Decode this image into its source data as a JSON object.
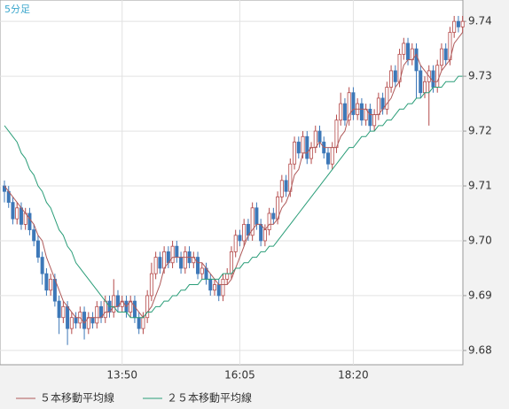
{
  "chart_data": {
    "type": "candlestick",
    "title": "5分足",
    "categories": [
      null,
      null,
      null,
      null,
      null,
      null,
      null,
      null,
      null,
      null,
      null,
      null,
      null,
      null,
      null,
      null,
      null,
      null,
      null,
      null,
      null,
      null,
      null,
      null,
      null,
      null,
      null,
      null,
      "13:50",
      null,
      null,
      null,
      null,
      null,
      null,
      null,
      null,
      null,
      null,
      null,
      null,
      null,
      null,
      null,
      null,
      null,
      null,
      null,
      null,
      null,
      null,
      null,
      null,
      null,
      null,
      null,
      "16:05",
      null,
      null,
      null,
      null,
      null,
      null,
      null,
      null,
      null,
      null,
      null,
      null,
      null,
      null,
      null,
      null,
      null,
      null,
      null,
      null,
      null,
      null,
      null,
      null,
      null,
      null,
      "18:20",
      null,
      null,
      null,
      null,
      null,
      null,
      null,
      null,
      null,
      null,
      null,
      null,
      null,
      null,
      null,
      null,
      null,
      null,
      null,
      null,
      null,
      null,
      null,
      null,
      null,
      null
    ],
    "ohlc": [
      [
        9.71,
        9.711,
        9.707,
        9.709
      ],
      [
        9.709,
        9.71,
        9.706,
        9.707
      ],
      [
        9.707,
        9.708,
        9.703,
        9.704
      ],
      [
        9.704,
        9.707,
        9.703,
        9.706
      ],
      [
        9.706,
        9.707,
        9.702,
        9.703
      ],
      [
        9.703,
        9.706,
        9.702,
        9.705
      ],
      [
        9.705,
        9.706,
        9.701,
        9.702
      ],
      [
        9.702,
        9.703,
        9.699,
        9.7
      ],
      [
        9.7,
        9.701,
        9.696,
        9.697
      ],
      [
        9.697,
        9.698,
        9.692,
        9.694
      ],
      [
        9.694,
        9.695,
        9.69,
        9.691
      ],
      [
        9.691,
        9.694,
        9.69,
        9.693
      ],
      [
        9.693,
        9.694,
        9.688,
        9.689
      ],
      [
        9.689,
        9.69,
        9.683,
        9.686
      ],
      [
        9.686,
        9.689,
        9.685,
        9.688
      ],
      [
        9.688,
        9.689,
        9.681,
        9.684
      ],
      [
        9.684,
        9.687,
        9.683,
        9.686
      ],
      [
        9.686,
        9.687,
        9.684,
        9.685
      ],
      [
        9.685,
        9.688,
        9.684,
        9.687
      ],
      [
        9.687,
        9.688,
        9.682,
        9.684
      ],
      [
        9.684,
        9.687,
        9.683,
        9.686
      ],
      [
        9.686,
        9.687,
        9.684,
        9.685
      ],
      [
        9.685,
        9.689,
        9.684,
        9.688
      ],
      [
        9.688,
        9.689,
        9.685,
        9.686
      ],
      [
        9.686,
        9.69,
        9.685,
        9.689
      ],
      [
        9.689,
        9.69,
        9.686,
        9.687
      ],
      [
        9.687,
        9.693,
        9.686,
        9.69
      ],
      [
        9.69,
        9.691,
        9.687,
        9.688
      ],
      [
        9.688,
        9.69,
        9.687,
        9.689
      ],
      [
        9.689,
        9.69,
        9.686,
        9.687
      ],
      [
        9.687,
        9.69,
        9.686,
        9.689
      ],
      [
        9.689,
        9.69,
        9.685,
        9.686
      ],
      [
        9.686,
        9.687,
        9.683,
        9.684
      ],
      [
        9.684,
        9.687,
        9.683,
        9.686
      ],
      [
        9.686,
        9.691,
        9.685,
        9.69
      ],
      [
        9.69,
        9.696,
        9.689,
        9.694
      ],
      [
        9.694,
        9.698,
        9.693,
        9.697
      ],
      [
        9.697,
        9.698,
        9.694,
        9.695
      ],
      [
        9.695,
        9.699,
        9.694,
        9.698
      ],
      [
        9.698,
        9.699,
        9.695,
        9.696
      ],
      [
        9.696,
        9.7,
        9.695,
        9.699
      ],
      [
        9.699,
        9.7,
        9.696,
        9.697
      ],
      [
        9.697,
        9.698,
        9.694,
        9.695
      ],
      [
        9.695,
        9.699,
        9.694,
        9.698
      ],
      [
        9.698,
        9.699,
        9.695,
        9.696
      ],
      [
        9.696,
        9.698,
        9.695,
        9.697
      ],
      [
        9.697,
        9.698,
        9.693,
        9.694
      ],
      [
        9.694,
        9.696,
        9.693,
        9.695
      ],
      [
        9.695,
        9.696,
        9.692,
        9.693
      ],
      [
        9.693,
        9.694,
        9.69,
        9.691
      ],
      [
        9.691,
        9.693,
        9.69,
        9.692
      ],
      [
        9.692,
        9.693,
        9.689,
        9.69
      ],
      [
        9.69,
        9.694,
        9.689,
        9.693
      ],
      [
        9.693,
        9.695,
        9.692,
        9.694
      ],
      [
        9.694,
        9.699,
        9.693,
        9.698
      ],
      [
        9.698,
        9.702,
        9.697,
        9.701
      ],
      [
        9.701,
        9.702,
        9.699,
        9.7
      ],
      [
        9.7,
        9.704,
        9.699,
        9.703
      ],
      [
        9.703,
        9.704,
        9.7,
        9.701
      ],
      [
        9.701,
        9.707,
        9.7,
        9.706
      ],
      [
        9.706,
        9.707,
        9.702,
        9.703
      ],
      [
        9.703,
        9.704,
        9.699,
        9.7
      ],
      [
        9.7,
        9.703,
        9.699,
        9.702
      ],
      [
        9.702,
        9.706,
        9.701,
        9.705
      ],
      [
        9.705,
        9.706,
        9.703,
        9.704
      ],
      [
        9.704,
        9.709,
        9.703,
        9.708
      ],
      [
        9.708,
        9.712,
        9.707,
        9.711
      ],
      [
        9.711,
        9.712,
        9.708,
        9.709
      ],
      [
        9.709,
        9.715,
        9.708,
        9.714
      ],
      [
        9.714,
        9.719,
        9.713,
        9.718
      ],
      [
        9.718,
        9.719,
        9.715,
        9.716
      ],
      [
        9.716,
        9.72,
        9.715,
        9.719
      ],
      [
        9.719,
        9.72,
        9.714,
        9.715
      ],
      [
        9.715,
        9.718,
        9.714,
        9.717
      ],
      [
        9.717,
        9.721,
        9.716,
        9.72
      ],
      [
        9.72,
        9.721,
        9.717,
        9.718
      ],
      [
        9.718,
        9.719,
        9.715,
        9.716
      ],
      [
        9.716,
        9.717,
        9.713,
        9.714
      ],
      [
        9.714,
        9.718,
        9.713,
        9.717
      ],
      [
        9.717,
        9.723,
        9.716,
        9.722
      ],
      [
        9.722,
        9.727,
        9.721,
        9.725
      ],
      [
        9.725,
        9.726,
        9.721,
        9.722
      ],
      [
        9.722,
        9.728,
        9.721,
        9.727
      ],
      [
        9.727,
        9.728,
        9.722,
        9.723
      ],
      [
        9.723,
        9.726,
        9.722,
        9.725
      ],
      [
        9.725,
        9.726,
        9.721,
        9.722
      ],
      [
        9.722,
        9.725,
        9.721,
        9.724
      ],
      [
        9.724,
        9.725,
        9.72,
        9.721
      ],
      [
        9.721,
        9.724,
        9.72,
        9.723
      ],
      [
        9.723,
        9.727,
        9.722,
        9.726
      ],
      [
        9.726,
        9.727,
        9.723,
        9.724
      ],
      [
        9.724,
        9.729,
        9.723,
        9.728
      ],
      [
        9.728,
        9.732,
        9.727,
        9.731
      ],
      [
        9.731,
        9.732,
        9.728,
        9.729
      ],
      [
        9.729,
        9.735,
        9.728,
        9.734
      ],
      [
        9.734,
        9.737,
        9.733,
        9.736
      ],
      [
        9.736,
        9.737,
        9.732,
        9.733
      ],
      [
        9.733,
        9.736,
        9.732,
        9.735
      ],
      [
        9.735,
        9.736,
        9.726,
        9.731
      ],
      [
        9.731,
        9.732,
        9.726,
        9.727
      ],
      [
        9.727,
        9.73,
        9.726,
        9.729
      ],
      [
        9.729,
        9.732,
        9.721,
        9.731
      ],
      [
        9.731,
        9.732,
        9.727,
        9.728
      ],
      [
        9.728,
        9.733,
        9.727,
        9.732
      ],
      [
        9.732,
        9.736,
        9.731,
        9.735
      ],
      [
        9.735,
        9.736,
        9.732,
        9.733
      ],
      [
        9.733,
        9.739,
        9.732,
        9.738
      ],
      [
        9.738,
        9.741,
        9.737,
        9.74
      ],
      [
        9.74,
        9.741,
        9.738,
        9.739
      ],
      [
        9.739,
        9.741,
        9.738,
        9.74
      ]
    ],
    "up_color": "#b44a4a",
    "down_color": "#3d78b8",
    "series": [
      {
        "name": "５本移動平均線",
        "color": "#b05a5a",
        "values": [
          9.71,
          9.709,
          9.708,
          9.707,
          9.706,
          9.705,
          9.704,
          9.703,
          9.701,
          9.7,
          9.697,
          9.695,
          9.693,
          9.691,
          9.689,
          9.688,
          9.687,
          9.686,
          9.686,
          9.685,
          9.686,
          9.686,
          9.686,
          9.686,
          9.687,
          9.687,
          9.688,
          9.688,
          9.689,
          9.688,
          9.689,
          9.688,
          9.687,
          9.686,
          9.687,
          9.688,
          9.69,
          9.692,
          9.695,
          9.696,
          9.697,
          9.697,
          9.697,
          9.697,
          9.697,
          9.697,
          9.696,
          9.696,
          9.695,
          9.694,
          9.693,
          9.692,
          9.692,
          9.692,
          9.693,
          9.695,
          9.697,
          9.699,
          9.701,
          9.702,
          9.703,
          9.703,
          9.702,
          9.703,
          9.703,
          9.704,
          9.706,
          9.707,
          9.709,
          9.712,
          9.713,
          9.716,
          9.716,
          9.717,
          9.717,
          9.718,
          9.717,
          9.717,
          9.717,
          9.717,
          9.719,
          9.72,
          9.723,
          9.724,
          9.724,
          9.724,
          9.724,
          9.723,
          9.723,
          9.723,
          9.724,
          9.725,
          9.726,
          9.728,
          9.729,
          9.732,
          9.733,
          9.733,
          9.734,
          9.732,
          9.731,
          9.73,
          9.729,
          9.729,
          9.731,
          9.732,
          9.733,
          9.736,
          9.737,
          9.738
        ]
      },
      {
        "name": "２５本移動平均線",
        "color": "#2a9d78",
        "values": [
          9.721,
          9.72,
          9.719,
          9.718,
          9.716,
          9.715,
          9.713,
          9.712,
          9.71,
          9.709,
          9.707,
          9.706,
          9.704,
          9.702,
          9.701,
          9.699,
          9.698,
          9.696,
          9.695,
          9.694,
          9.693,
          9.692,
          9.691,
          9.69,
          9.689,
          9.688,
          9.688,
          9.687,
          9.687,
          9.687,
          9.686,
          9.686,
          9.686,
          9.686,
          9.687,
          9.687,
          9.688,
          9.688,
          9.689,
          9.689,
          9.69,
          9.69,
          9.691,
          9.691,
          9.692,
          9.692,
          9.692,
          9.693,
          9.693,
          9.693,
          9.693,
          9.693,
          9.694,
          9.694,
          9.694,
          9.695,
          9.695,
          9.696,
          9.696,
          9.697,
          9.697,
          9.698,
          9.698,
          9.699,
          9.699,
          9.7,
          9.701,
          9.702,
          9.703,
          9.704,
          9.705,
          9.706,
          9.707,
          9.708,
          9.709,
          9.71,
          9.711,
          9.712,
          9.713,
          9.714,
          9.715,
          9.716,
          9.717,
          9.717,
          9.718,
          9.719,
          9.719,
          9.72,
          9.72,
          9.721,
          9.721,
          9.722,
          9.722,
          9.723,
          9.724,
          9.724,
          9.725,
          9.725,
          9.726,
          9.726,
          9.727,
          9.727,
          9.728,
          9.728,
          9.728,
          9.729,
          9.729,
          9.729,
          9.73,
          9.73
        ]
      }
    ],
    "ylim": [
      9.6774,
      9.7439
    ],
    "yticks": [
      9.68,
      9.69,
      {
        "value": 9.7,
        "label": "9.70"
      },
      9.71,
      9.72,
      9.73,
      9.74
    ],
    "grid": true
  }
}
